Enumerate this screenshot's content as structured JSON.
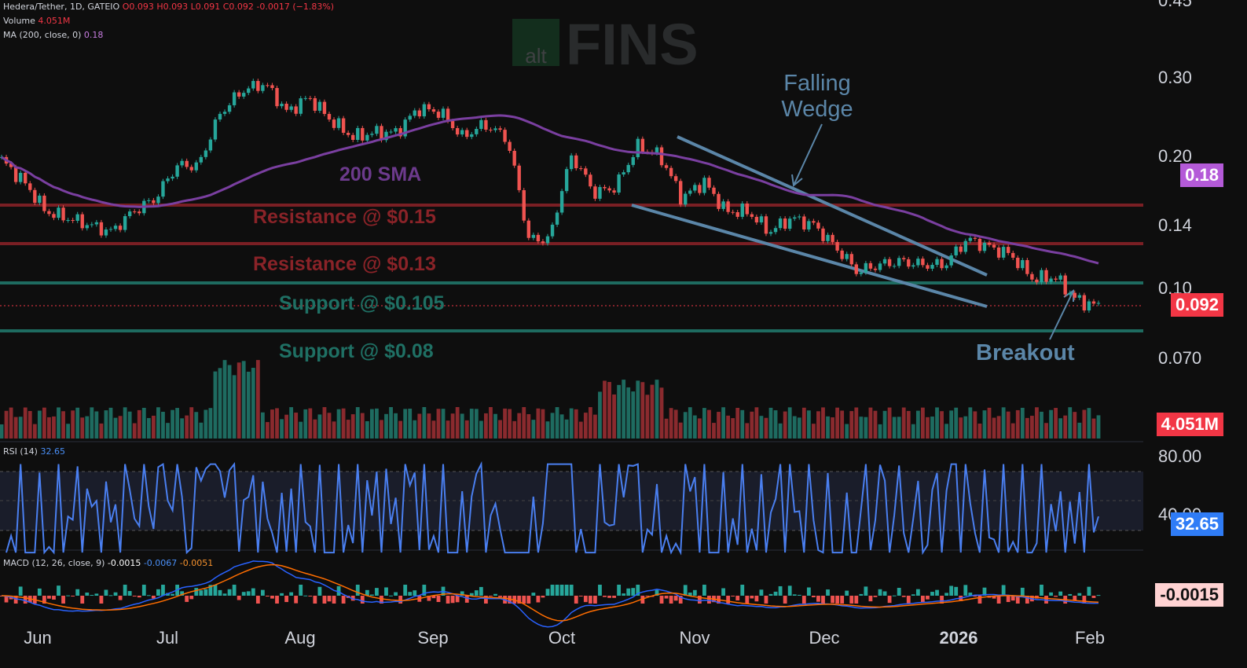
{
  "legend": {
    "symbol": "Hedera/Tether, 1D, GATEIO",
    "ohlc": "O0.093 H0.093 L0.091 C0.092 -0.0017 (−1.83%)",
    "volume_label": "Volume",
    "volume_value": "4.051M",
    "ma_label": "MA (200, close, 0)",
    "ma_value": "0.18",
    "rsi_label": "RSI (14)",
    "rsi_value": "32.65",
    "macd_label": "MACD (12, 26, close, 9)",
    "macd_value1": "-0.0015",
    "macd_value2": "-0.0067",
    "macd_value3": "-0.0051"
  },
  "watermark": {
    "prefix": "alt",
    "word": "FINS"
  },
  "badges": {
    "ma": "0.18",
    "price": "0.092",
    "volume": "4.051M",
    "rsi": "32.65",
    "macd": "-0.0015"
  },
  "colors": {
    "background": "#0e0e0e",
    "up": "#26a69a",
    "down": "#ef5350",
    "ma": "#7a3fa0",
    "resistance": "#7a1f24",
    "support": "#1e6b60",
    "annotation": "#5b86a8",
    "rsi": "#4a7ff0",
    "macd": "#2962ff",
    "signal": "#ff6d00"
  },
  "chart_data": {
    "type": "candlestick",
    "x": [
      "Jun",
      "Jul",
      "Aug",
      "Sep",
      "Oct",
      "Nov",
      "Dec",
      "2026",
      "Feb"
    ],
    "price_axis_ticks": [
      "0.45",
      "0.30",
      "0.20",
      "0.14",
      "0.10",
      "0.070"
    ],
    "log_scale": true,
    "ma_200_last": 0.18,
    "last_close": 0.092,
    "annotations": [
      {
        "text": "200 SMA"
      },
      {
        "text": "Resistance @ $0.15",
        "level": 0.15
      },
      {
        "text": "Resistance @ $0.13",
        "level": 0.13
      },
      {
        "text": "Support @ $0.105",
        "level": 0.105
      },
      {
        "text": "Support @ $0.08",
        "level": 0.08
      },
      {
        "text": "Falling Wedge"
      },
      {
        "text": "Breakout"
      }
    ],
    "pattern_title": [
      "Falling",
      "Wedge"
    ],
    "rsi": {
      "ticks": [
        "80.00",
        "40.00"
      ],
      "last": 32.65
    },
    "volume_last": "4.051M",
    "macd": {
      "macd": -0.0067,
      "signal": -0.0051,
      "histogram": -0.0015
    },
    "price_path": [
      [
        0.195,
        0.175,
        0.15,
        0.145,
        0.14,
        0.135,
        0.15,
        0.16,
        0.19
      ],
      [
        0.19,
        0.25,
        0.28,
        0.29,
        0.25,
        0.27,
        0.24,
        0.22,
        0.225
      ],
      [
        0.225,
        0.255,
        0.25,
        0.22,
        0.235,
        0.22,
        0.13
      ],
      [
        0.13,
        0.2,
        0.165,
        0.17,
        0.21,
        0.2,
        0.16,
        0.175,
        0.15
      ],
      [
        0.15,
        0.135,
        0.145,
        0.14,
        0.125,
        0.11,
        0.114,
        0.116,
        0.114
      ],
      [
        0.114,
        0.13,
        0.125,
        0.12,
        0.106,
        0.107,
        0.095,
        0.092
      ]
    ]
  }
}
